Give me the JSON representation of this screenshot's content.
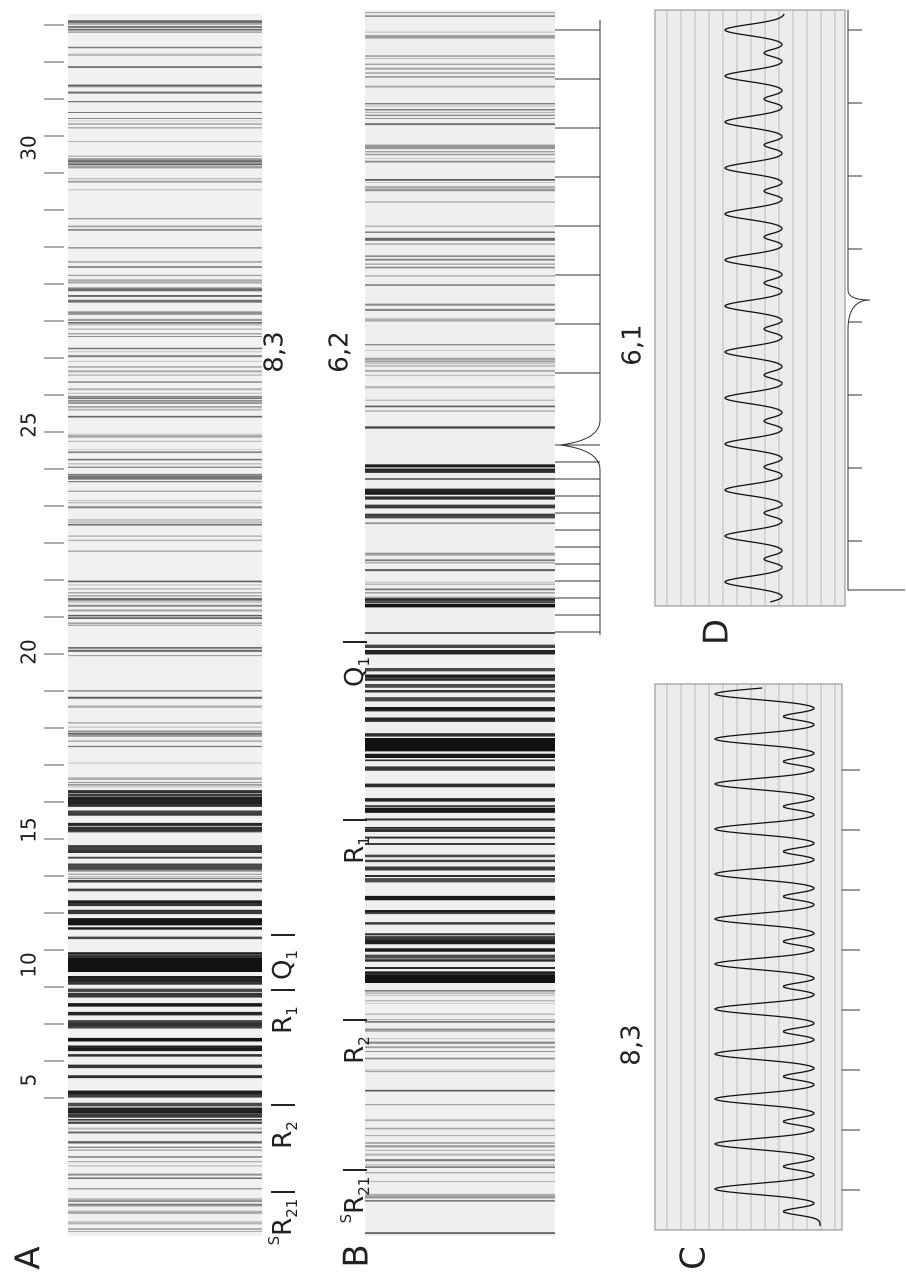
{
  "panels": [
    {
      "letter": "A",
      "band": "8,3",
      "scale": [
        "30",
        "25",
        "20",
        "15",
        "10",
        "5"
      ],
      "labels": [
        {
          "main": "Q",
          "sub": "1"
        },
        {
          "main": "R",
          "sub": "1"
        },
        {
          "main": "R",
          "sub": "2"
        },
        {
          "sup": "S",
          "main": "R",
          "sub": "21"
        }
      ]
    },
    {
      "letter": "B",
      "band": "6,2",
      "labels": [
        {
          "main": "Q",
          "sub": "1"
        },
        {
          "main": "R",
          "sub": "1"
        },
        {
          "main": "R",
          "sub": "2"
        },
        {
          "sup": "S",
          "main": "R",
          "sub": "21"
        }
      ]
    },
    {
      "letter": "C",
      "band": "8,3"
    },
    {
      "letter": "D",
      "band": "6,1"
    }
  ]
}
